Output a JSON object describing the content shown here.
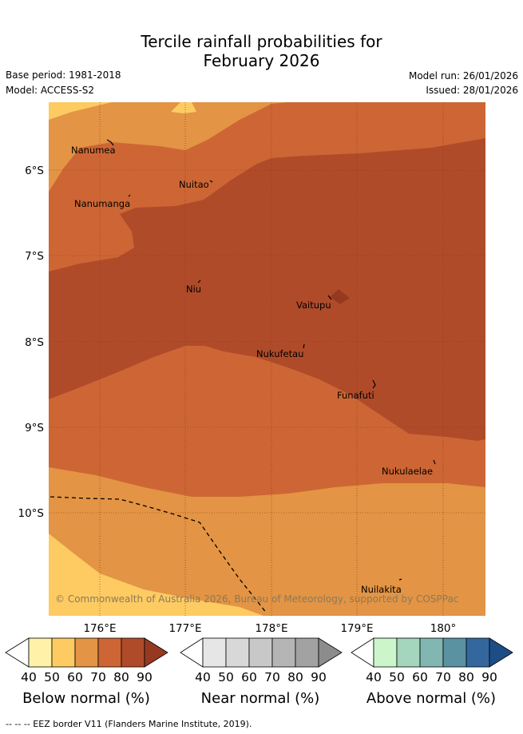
{
  "title": {
    "line1": "Tercile rainfall probabilities for",
    "line2": "February 2026"
  },
  "header": {
    "base_period": "Base period: 1981-2018",
    "model": "Model: ACCESS-S2",
    "model_run": "Model run: 26/01/2026",
    "issued": "Issued: 28/01/2026"
  },
  "axes": {
    "lon_ticks": [
      "176°E",
      "177°E",
      "178°E",
      "179°E",
      "180°"
    ],
    "lat_ticks": [
      "6°S",
      "7°S",
      "8°S",
      "9°S",
      "10°S"
    ]
  },
  "places": [
    {
      "name": "Nanumea"
    },
    {
      "name": "Nuitao"
    },
    {
      "name": "Nanumanga"
    },
    {
      "name": "Niu"
    },
    {
      "name": "Vaitupu"
    },
    {
      "name": "Nukufetau"
    },
    {
      "name": "Funafuti"
    },
    {
      "name": "Nukulaelae"
    },
    {
      "name": "Nuilakita"
    }
  ],
  "copyright": "© Commonwealth of Australia 2026, Bureau of Meteorology, supported by COSPPac",
  "colorbars": [
    {
      "title": "Below normal (%)",
      "labels": [
        "40",
        "50",
        "60",
        "70",
        "80",
        "90"
      ],
      "colors": [
        "#ffffff",
        "#fff1a8",
        "#fdcb62",
        "#e39444",
        "#cd6634",
        "#b04b2a",
        "#953a20"
      ]
    },
    {
      "title": "Near normal (%)",
      "labels": [
        "40",
        "50",
        "60",
        "70",
        "80",
        "90"
      ],
      "colors": [
        "#ffffff",
        "#e6e6e6",
        "#d8d8d8",
        "#c8c8c8",
        "#b5b5b5",
        "#a2a2a2",
        "#8c8c8c"
      ]
    },
    {
      "title": "Above normal (%)",
      "labels": [
        "40",
        "50",
        "60",
        "70",
        "80",
        "90"
      ],
      "colors": [
        "#ffffff",
        "#ccf5cc",
        "#a3d6bc",
        "#82b6b0",
        "#5a92a1",
        "#33679e",
        "#1c4d86"
      ]
    }
  ],
  "footer": "-- -- -- EEZ border V11 (Flanders Marine Institute, 2019)."
}
